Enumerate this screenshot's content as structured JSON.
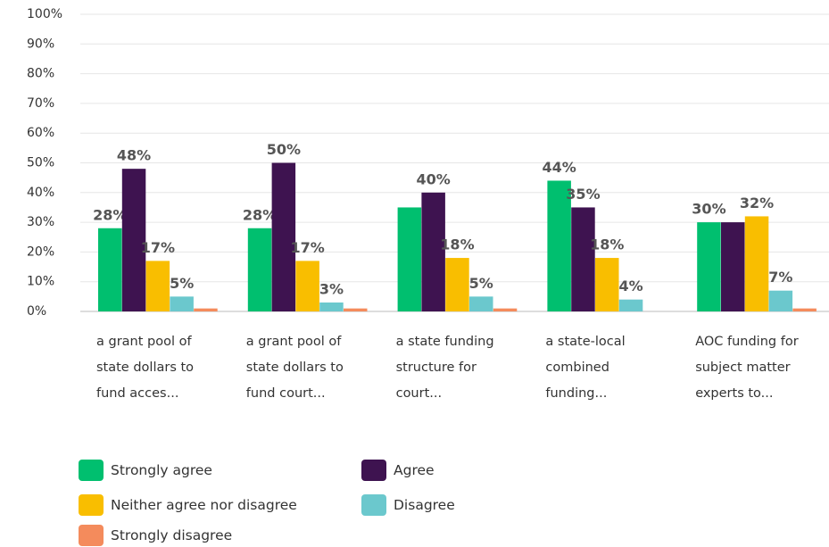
{
  "chart_data": {
    "type": "bar",
    "categories": [
      "a grant pool of state dollars to fund acces...",
      "a grant pool of state dollars to fund court...",
      "a state funding structure for court...",
      "a state-local combined funding...",
      "AOC funding for subject matter experts to..."
    ],
    "series": [
      {
        "name": "Strongly agree",
        "color": "#00bf6f",
        "values": [
          28,
          28,
          35,
          44,
          30
        ],
        "value_labels": [
          "28%",
          "28%",
          null,
          "44%",
          "30%"
        ]
      },
      {
        "name": "Agree",
        "color": "#3e1350",
        "values": [
          48,
          50,
          40,
          35,
          30
        ],
        "value_labels": [
          "48%",
          "50%",
          "40%",
          "35%",
          null
        ]
      },
      {
        "name": "Neither agree nor disagree",
        "color": "#f9be00",
        "values": [
          17,
          17,
          18,
          18,
          32
        ],
        "value_labels": [
          "17%",
          "17%",
          "18%",
          "18%",
          "32%"
        ]
      },
      {
        "name": "Disagree",
        "color": "#6bc8cd",
        "values": [
          5,
          3,
          5,
          4,
          7
        ],
        "value_labels": [
          "5%",
          "3%",
          "5%",
          "4%",
          "7%"
        ]
      },
      {
        "name": "Strongly disagree",
        "color": "#f48b5c",
        "values": [
          1,
          1,
          1,
          0,
          1
        ],
        "value_labels": [
          null,
          null,
          null,
          null,
          null
        ]
      }
    ],
    "ylim": [
      0,
      100
    ],
    "yticks": [
      {
        "value": 0,
        "label": "0%"
      },
      {
        "value": 10,
        "label": "10%"
      },
      {
        "value": 20,
        "label": "20%"
      },
      {
        "value": 30,
        "label": "30%"
      },
      {
        "value": 40,
        "label": "40%"
      },
      {
        "value": 50,
        "label": "50%"
      },
      {
        "value": 60,
        "label": "60%"
      },
      {
        "value": 70,
        "label": "70%"
      },
      {
        "value": 80,
        "label": "80%"
      },
      {
        "value": 90,
        "label": "90%"
      },
      {
        "value": 100,
        "label": "100%"
      }
    ],
    "grid": true
  }
}
